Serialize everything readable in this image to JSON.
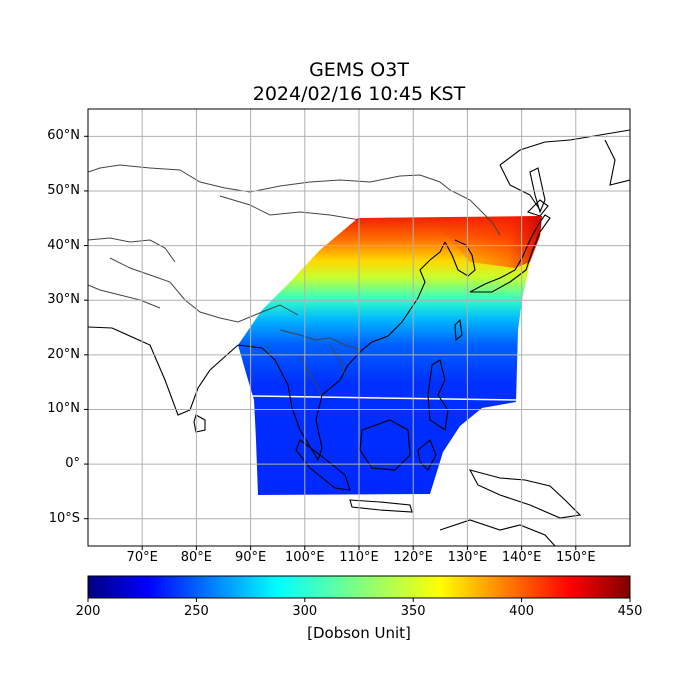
{
  "title": "GEMS O3T",
  "subtitle": "2024/02/16 10:45 KST",
  "map": {
    "lon_range": [
      60,
      160
    ],
    "lat_range": [
      -15,
      65
    ],
    "lat_labels": [
      "60°N",
      "50°N",
      "40°N",
      "30°N",
      "20°N",
      "10°N",
      "0°",
      "10°S"
    ],
    "lat_values": [
      60,
      50,
      40,
      30,
      20,
      10,
      0,
      -10
    ],
    "lon_labels": [
      "70°E",
      "80°E",
      "90°E",
      "100°E",
      "110°E",
      "120°E",
      "130°E",
      "140°E",
      "150°E"
    ],
    "lon_values": [
      70,
      80,
      90,
      100,
      110,
      120,
      130,
      140,
      150
    ],
    "grid": true,
    "coastline_color": "#000000",
    "border_color": "#444444"
  },
  "colorbar": {
    "min": 200,
    "max": 450,
    "tick_values": [
      200,
      250,
      300,
      350,
      400,
      450
    ],
    "tick_labels": [
      "200",
      "250",
      "300",
      "350",
      "400",
      "450"
    ],
    "units": "[Dobson Unit]",
    "colormap": "jet"
  }
}
